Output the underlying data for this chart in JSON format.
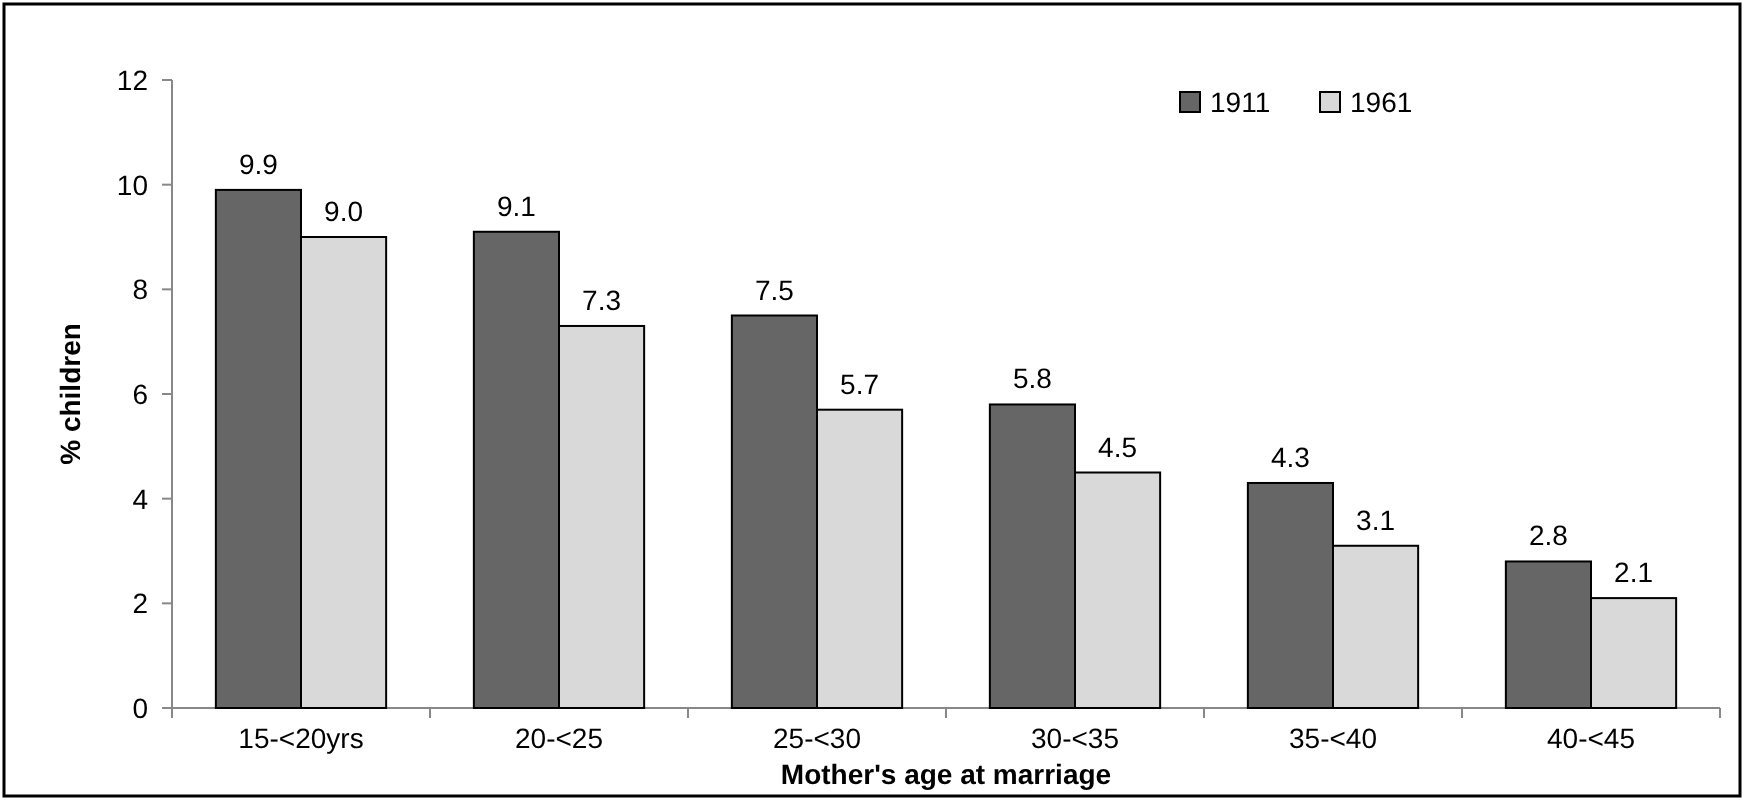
{
  "chart_data": {
    "type": "bar",
    "xlabel": "Mother's age at marriage",
    "ylabel": "% children",
    "categories": [
      "15-<20yrs",
      "20-<25",
      "25-<30",
      "30-<35",
      "35-<40",
      "40-<45"
    ],
    "series": [
      {
        "name": "1911",
        "color": "#666666",
        "values": [
          9.9,
          9.1,
          7.5,
          5.8,
          4.3,
          2.8
        ],
        "value_labels": [
          "9.9",
          "9.1",
          "7.5",
          "5.8",
          "4.3",
          "2.8"
        ]
      },
      {
        "name": "1961",
        "color": "#d9d9d9",
        "values": [
          9.0,
          7.3,
          5.7,
          4.5,
          3.1,
          2.1
        ],
        "value_labels": [
          "9.0",
          "7.3",
          "5.7",
          "4.5",
          "3.1",
          "2.1"
        ]
      }
    ],
    "ylim": [
      0,
      12
    ],
    "yticks": [
      0,
      2,
      4,
      6,
      8,
      10,
      12
    ],
    "grid": false,
    "legend": "top right"
  }
}
